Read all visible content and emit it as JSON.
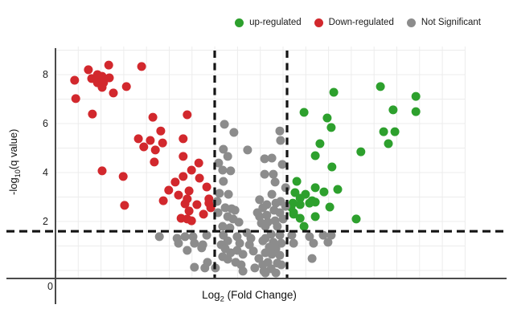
{
  "legend": {
    "items": [
      {
        "label": "up-regulated",
        "color": "#2da02d",
        "icon": "dot"
      },
      {
        "label": "Down-regulated",
        "color": "#d2282d",
        "icon": "dot"
      },
      {
        "label": "Not Significant",
        "color": "#8c8c8c",
        "icon": "dot"
      }
    ]
  },
  "chart_data": {
    "type": "scatter",
    "title": "",
    "xlabel": "Log2 (Fold Change)",
    "ylabel": "-log10(q value)",
    "xlabel_parts": {
      "main": "Log",
      "sub": "2",
      "rest": " (Fold Change)"
    },
    "ylabel_parts": {
      "main": "-log",
      "sub": "10",
      "rest": "(q value)"
    },
    "xlim": [
      -5.4,
      5.9
    ],
    "ylim": [
      -0.35,
      9.13
    ],
    "yticks": [
      0,
      2,
      4,
      6,
      8
    ],
    "ytick_labels": [
      "0",
      "2",
      "4",
      "6",
      "8"
    ],
    "grid": true,
    "legend_position": "top-right",
    "thresholds": {
      "vertical_x": [
        -1,
        1
      ],
      "horizontal_y": 1.6,
      "line_style": "dashed",
      "line_color": "#141414"
    },
    "colors": {
      "up": "#2da02d",
      "down": "#d2282d",
      "ns": "#8c8c8c",
      "grid": "#ececec",
      "spine": "#4a4a4a"
    },
    "series": [
      {
        "name": "up-regulated",
        "color": "#2da02d",
        "points": [
          [
            3.58,
            7.51
          ],
          [
            4.56,
            7.11
          ],
          [
            3.93,
            6.56
          ],
          [
            4.56,
            6.49
          ],
          [
            3.67,
            5.67
          ],
          [
            3.98,
            5.67
          ],
          [
            2.29,
            7.28
          ],
          [
            1.47,
            6.46
          ],
          [
            2.11,
            6.23
          ],
          [
            2.22,
            5.84
          ],
          [
            1.91,
            5.18
          ],
          [
            3.8,
            5.18
          ],
          [
            3.04,
            4.85
          ],
          [
            1.78,
            4.69
          ],
          [
            2.24,
            4.23
          ],
          [
            1.27,
            3.64
          ],
          [
            1.78,
            3.38
          ],
          [
            1.22,
            3.18
          ],
          [
            1.51,
            3.11
          ],
          [
            2.4,
            3.31
          ],
          [
            2.02,
            3.21
          ],
          [
            1.36,
            2.95
          ],
          [
            1.69,
            2.85
          ],
          [
            1.16,
            2.75
          ],
          [
            2.18,
            2.59
          ],
          [
            1.36,
            2.69
          ],
          [
            1.62,
            2.75
          ],
          [
            1.78,
            2.79
          ],
          [
            1.18,
            2.36
          ],
          [
            1.36,
            2.13
          ],
          [
            1.78,
            2.2
          ],
          [
            1.47,
            1.8
          ],
          [
            2.91,
            2.1
          ],
          [
            1.11,
            2.59
          ],
          [
            1.18,
            2.3
          ]
        ]
      },
      {
        "name": "Down-regulated",
        "color": "#d2282d",
        "points": [
          [
            -4.49,
            8.2
          ],
          [
            -3.93,
            8.39
          ],
          [
            -3.02,
            8.33
          ],
          [
            -4.87,
            7.77
          ],
          [
            -4.4,
            7.84
          ],
          [
            -4.24,
            8.0
          ],
          [
            -4.11,
            7.93
          ],
          [
            -4.24,
            7.67
          ],
          [
            -4.07,
            7.67
          ],
          [
            -3.91,
            7.87
          ],
          [
            -4.11,
            7.48
          ],
          [
            -3.44,
            7.51
          ],
          [
            -3.8,
            7.25
          ],
          [
            -4.84,
            7.02
          ],
          [
            -4.38,
            6.39
          ],
          [
            -2.71,
            6.26
          ],
          [
            -1.76,
            6.36
          ],
          [
            -2.49,
            5.7
          ],
          [
            -3.11,
            5.38
          ],
          [
            -2.78,
            5.31
          ],
          [
            -2.96,
            5.05
          ],
          [
            -2.44,
            5.21
          ],
          [
            -2.64,
            4.92
          ],
          [
            -1.87,
            5.38
          ],
          [
            -2.67,
            4.43
          ],
          [
            -1.87,
            4.66
          ],
          [
            -1.44,
            4.39
          ],
          [
            -1.64,
            4.1
          ],
          [
            -3.53,
            3.84
          ],
          [
            -4.11,
            4.07
          ],
          [
            -3.49,
            2.66
          ],
          [
            -1.87,
            3.84
          ],
          [
            -1.42,
            3.77
          ],
          [
            -2.09,
            3.61
          ],
          [
            -1.22,
            3.41
          ],
          [
            -2.27,
            3.28
          ],
          [
            -1.71,
            3.25
          ],
          [
            -2.0,
            3.08
          ],
          [
            -1.76,
            2.92
          ],
          [
            -2.42,
            2.85
          ],
          [
            -1.16,
            2.92
          ],
          [
            -1.82,
            2.72
          ],
          [
            -1.49,
            2.69
          ],
          [
            -1.16,
            2.75
          ],
          [
            -1.71,
            2.43
          ],
          [
            -1.31,
            2.3
          ],
          [
            -1.93,
            2.13
          ],
          [
            -1.76,
            2.1
          ],
          [
            -1.64,
            2.03
          ],
          [
            -1.11,
            2.56
          ]
        ]
      },
      {
        "name": "Not Significant",
        "color": "#8c8c8c",
        "points": [
          [
            -0.73,
            5.97
          ],
          [
            -0.47,
            5.64
          ],
          [
            0.8,
            5.7
          ],
          [
            0.82,
            5.31
          ],
          [
            -0.76,
            4.95
          ],
          [
            -0.09,
            4.92
          ],
          [
            -0.64,
            4.66
          ],
          [
            -0.89,
            4.39
          ],
          [
            0.38,
            4.56
          ],
          [
            0.58,
            4.59
          ],
          [
            -0.78,
            4.1
          ],
          [
            -0.56,
            4.07
          ],
          [
            0.87,
            4.33
          ],
          [
            0.38,
            3.93
          ],
          [
            0.62,
            3.93
          ],
          [
            -0.76,
            3.64
          ],
          [
            0.67,
            3.61
          ],
          [
            0.96,
            3.38
          ],
          [
            -0.87,
            3.15
          ],
          [
            -0.62,
            3.11
          ],
          [
            -0.93,
            2.82
          ],
          [
            0.58,
            3.11
          ],
          [
            0.24,
            2.89
          ],
          [
            0.82,
            2.82
          ],
          [
            -0.71,
            2.56
          ],
          [
            -0.53,
            2.52
          ],
          [
            -0.44,
            2.46
          ],
          [
            -0.91,
            2.36
          ],
          [
            0.33,
            2.56
          ],
          [
            0.44,
            2.26
          ],
          [
            0.24,
            2.2
          ],
          [
            0.64,
            2.46
          ],
          [
            -0.64,
            2.2
          ],
          [
            -0.49,
            2.1
          ],
          [
            -0.33,
            1.97
          ],
          [
            -0.78,
            1.8
          ],
          [
            -0.58,
            1.74
          ],
          [
            0.29,
            1.93
          ],
          [
            0.47,
            1.97
          ],
          [
            0.67,
            2.03
          ],
          [
            0.96,
            2.62
          ],
          [
            0.18,
            2.36
          ],
          [
            0.44,
            2.69
          ],
          [
            0.69,
            2.75
          ],
          [
            0.8,
            2.36
          ],
          [
            0.89,
            2.1
          ],
          [
            0.4,
            1.8
          ],
          [
            0.73,
            1.8
          ],
          [
            -2.53,
            1.38
          ],
          [
            -2.04,
            1.31
          ],
          [
            -2.0,
            1.11
          ],
          [
            -1.82,
            1.38
          ],
          [
            -1.76,
            0.82
          ],
          [
            -1.6,
            1.38
          ],
          [
            -1.56,
            1.11
          ],
          [
            -1.33,
            1.05
          ],
          [
            -1.22,
            1.44
          ],
          [
            -1.2,
            0.33
          ],
          [
            -1.36,
            0.92
          ],
          [
            -0.76,
            1.44
          ],
          [
            -0.64,
            1.21
          ],
          [
            -0.82,
            1.05
          ],
          [
            -0.71,
            0.89
          ],
          [
            -0.56,
            0.72
          ],
          [
            -0.78,
            0.56
          ],
          [
            -0.64,
            0.46
          ],
          [
            -0.38,
            1.38
          ],
          [
            -0.31,
            1.11
          ],
          [
            -0.38,
            0.82
          ],
          [
            -0.22,
            0.66
          ],
          [
            -0.42,
            0.33
          ],
          [
            -0.27,
            0.23
          ],
          [
            -0.11,
            1.54
          ],
          [
            0.0,
            1.31
          ],
          [
            -0.04,
            1.05
          ],
          [
            0.07,
            0.79
          ],
          [
            0.33,
            1.21
          ],
          [
            0.22,
            0.49
          ],
          [
            0.33,
            0.23
          ],
          [
            0.36,
            -0.03
          ],
          [
            0.56,
            1.48
          ],
          [
            0.8,
            1.44
          ],
          [
            0.4,
            1.31
          ],
          [
            0.62,
            1.15
          ],
          [
            0.84,
            1.11
          ],
          [
            0.51,
            0.95
          ],
          [
            0.69,
            0.89
          ],
          [
            0.4,
            0.72
          ],
          [
            0.58,
            0.66
          ],
          [
            0.8,
            0.62
          ],
          [
            0.47,
            0.33
          ],
          [
            0.73,
            0.3
          ],
          [
            0.56,
            0.07
          ],
          [
            0.84,
            0.23
          ],
          [
            0.4,
            -0.1
          ],
          [
            0.69,
            -0.1
          ],
          [
            -1.56,
            0.13
          ],
          [
            -1.27,
            0.1
          ],
          [
            -0.98,
            0.1
          ],
          [
            -0.22,
            -0.03
          ],
          [
            0.11,
            0.1
          ],
          [
            1.13,
            1.44
          ],
          [
            1.18,
            1.11
          ],
          [
            1.62,
            1.38
          ],
          [
            1.73,
            1.11
          ],
          [
            2.0,
            1.44
          ],
          [
            2.13,
            1.15
          ],
          [
            2.22,
            1.44
          ],
          [
            1.69,
            0.49
          ]
        ]
      }
    ]
  }
}
